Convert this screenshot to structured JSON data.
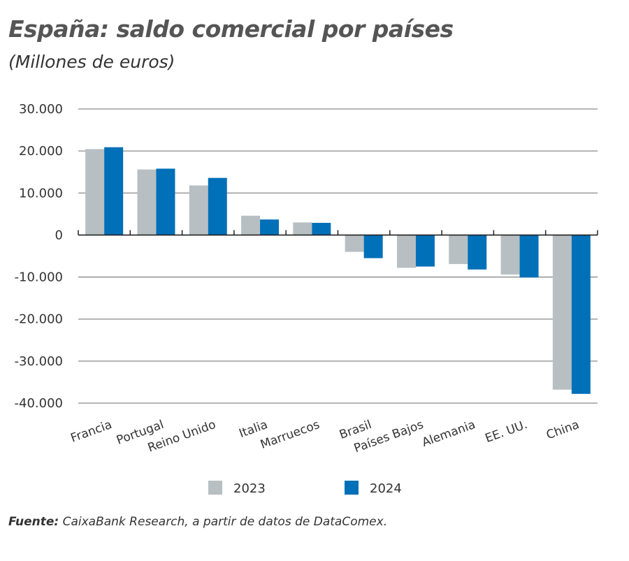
{
  "chart_data": {
    "type": "bar",
    "title": "España: saldo comercial por países",
    "subtitle": "(Millones de euros)",
    "categories": [
      "Francia",
      "Portugal",
      "Reino Unido",
      "Italia",
      "Marruecos",
      "Brasil",
      "Países Bajos",
      "Alemania",
      "EE. UU.",
      "China"
    ],
    "series": [
      {
        "name": "2023",
        "color": "#b7bfc3",
        "values": [
          20450,
          15600,
          11800,
          4600,
          3000,
          -4000,
          -7800,
          -6900,
          -9400,
          -36800
        ]
      },
      {
        "name": "2024",
        "color": "#0070b8",
        "values": [
          20900,
          15800,
          13600,
          3700,
          2900,
          -5500,
          -7500,
          -8200,
          -10100,
          -37800
        ]
      }
    ],
    "ylim": [
      -40000,
      30000
    ],
    "yticks": [
      30000,
      20000,
      10000,
      0,
      -10000,
      -20000,
      -30000,
      -40000
    ],
    "ytick_labels": [
      "30.000",
      "20.000",
      "10.000",
      "0",
      "-10.000",
      "-20.000",
      "-30.000",
      "-40.000"
    ],
    "grid": true,
    "legend_placement": "bottom"
  },
  "source_label": "Fuente:",
  "source_text": " CaixaBank Research, a partir de datos de DataComex."
}
